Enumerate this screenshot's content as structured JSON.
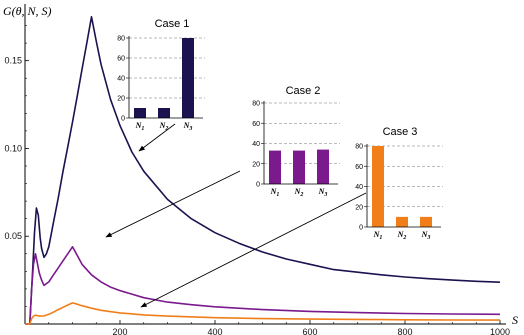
{
  "chart_data": [
    {
      "type": "line",
      "ylabel": "G(θ, N, S)",
      "xlabel": "S",
      "xlim": [
        0,
        1000
      ],
      "ylim": [
        0,
        0.18
      ],
      "x_ticks": [
        "200",
        "400",
        "600",
        "800",
        "1000"
      ],
      "y_ticks": [
        "0.05",
        "0.10",
        "0.15"
      ],
      "x_tick_values": [
        200,
        400,
        600,
        800,
        1000
      ],
      "y_tick_values": [
        0.05,
        0.1,
        0.15
      ],
      "series": [
        {
          "color": "#1a1350",
          "x": [
            0,
            10,
            16,
            20,
            24,
            28,
            30,
            32,
            35,
            40,
            45,
            50,
            60,
            70,
            80,
            90,
            100,
            110,
            120,
            130,
            140,
            150,
            160,
            180,
            200,
            225,
            250,
            300,
            350,
            400,
            450,
            500,
            550,
            600,
            650,
            700,
            750,
            800,
            850,
            900,
            950,
            1000
          ],
          "y": [
            0,
            0.0,
            0.03,
            0.052,
            0.066,
            0.062,
            0.055,
            0.049,
            0.043,
            0.038,
            0.04,
            0.044,
            0.058,
            0.072,
            0.087,
            0.101,
            0.115,
            0.13,
            0.145,
            0.16,
            0.175,
            0.161,
            0.148,
            0.128,
            0.113,
            0.098,
            0.087,
            0.071,
            0.06,
            0.052,
            0.046,
            0.041,
            0.037,
            0.034,
            0.031,
            0.0295,
            0.028,
            0.0268,
            0.0258,
            0.025,
            0.0243,
            0.0238
          ]
        },
        {
          "color": "#7a1a8c",
          "x": [
            0,
            10,
            14,
            18,
            22,
            25,
            30,
            35,
            40,
            50,
            60,
            70,
            80,
            90,
            100,
            110,
            120,
            140,
            160,
            180,
            200,
            250,
            300,
            350,
            400,
            500,
            600,
            700,
            800,
            900,
            1000
          ],
          "y": [
            0,
            0.0,
            0.02,
            0.034,
            0.04,
            0.036,
            0.029,
            0.025,
            0.022,
            0.024,
            0.028,
            0.032,
            0.036,
            0.04,
            0.044,
            0.039,
            0.034,
            0.028,
            0.024,
            0.021,
            0.019,
            0.015,
            0.0125,
            0.011,
            0.0098,
            0.0082,
            0.0072,
            0.0065,
            0.006,
            0.0057,
            0.0055
          ]
        },
        {
          "color": "#f07f1a",
          "x": [
            0,
            10,
            14,
            18,
            22,
            26,
            30,
            40,
            50,
            60,
            70,
            80,
            90,
            100,
            110,
            120,
            140,
            160,
            200,
            250,
            300,
            400,
            500,
            600,
            700,
            800,
            900,
            1000
          ],
          "y": [
            0,
            0.0,
            0.003,
            0.0045,
            0.005,
            0.0048,
            0.0045,
            0.0046,
            0.0055,
            0.0068,
            0.0082,
            0.0095,
            0.0108,
            0.012,
            0.0113,
            0.0104,
            0.009,
            0.0078,
            0.0063,
            0.0052,
            0.0045,
            0.0036,
            0.0031,
            0.0028,
            0.0026,
            0.0024,
            0.0023,
            0.0022
          ]
        }
      ]
    },
    {
      "type": "bar",
      "title": "Case 1",
      "categories": [
        "N1",
        "N2",
        "N3"
      ],
      "values": [
        10,
        10,
        80
      ],
      "ylim": [
        0,
        80
      ],
      "y_ticks": [
        "0",
        "20",
        "40",
        "60",
        "80"
      ],
      "color": "#1a1350"
    },
    {
      "type": "bar",
      "title": "Case 2",
      "categories": [
        "N1",
        "N2",
        "N3"
      ],
      "values": [
        33,
        33,
        34
      ],
      "ylim": [
        0,
        80
      ],
      "y_ticks": [
        "0",
        "20",
        "40",
        "60",
        "80"
      ],
      "color": "#7a1a8c"
    },
    {
      "type": "bar",
      "title": "Case 3",
      "categories": [
        "N1",
        "N2",
        "N3"
      ],
      "values": [
        80,
        10,
        10
      ],
      "ylim": [
        0,
        80
      ],
      "y_ticks": [
        "0",
        "20",
        "40",
        "60",
        "80"
      ],
      "color": "#f07f1a"
    }
  ]
}
